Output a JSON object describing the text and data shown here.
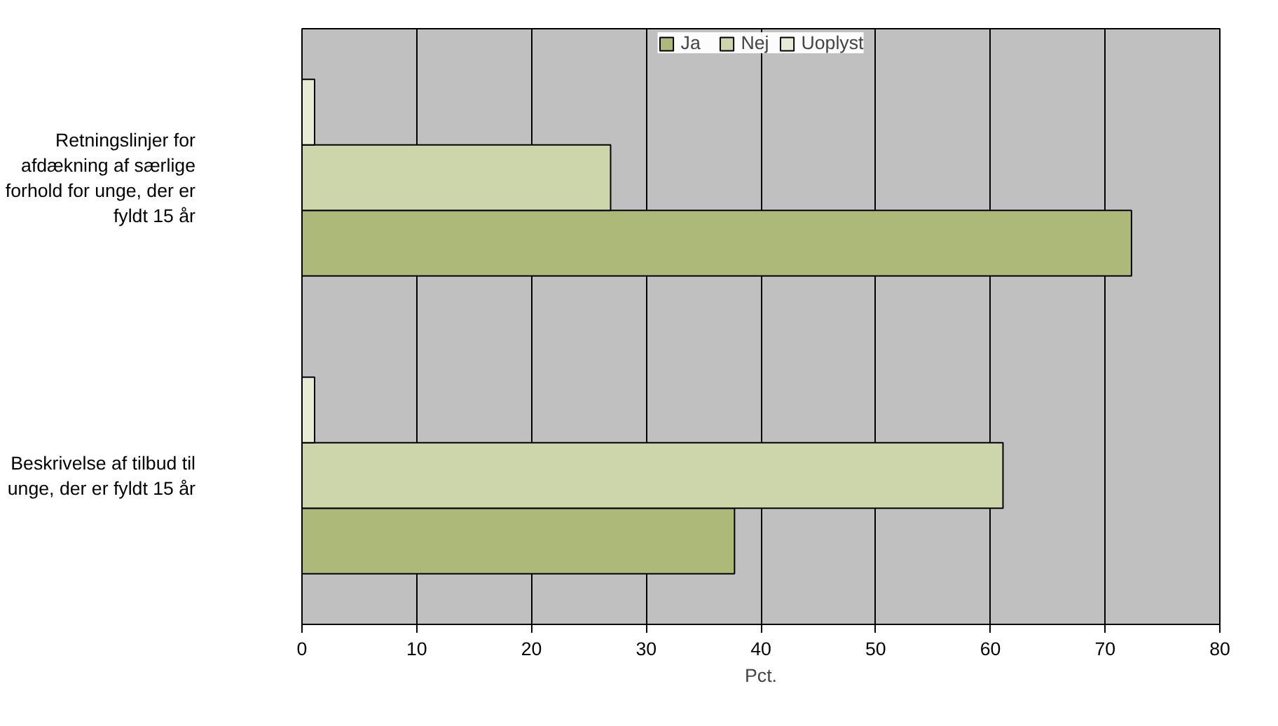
{
  "chart_data": {
    "type": "bar",
    "orientation": "horizontal",
    "xlabel": "Pct.",
    "categories": [
      "Retningslinjer for afdækning af særlige forhold for unge, der er fyldt 15 år",
      "Beskrivelse af tilbud til unge, der er fyldt 15 år"
    ],
    "series": [
      {
        "name": "Ja",
        "color": "#adb978",
        "values": [
          72.3,
          37.7
        ]
      },
      {
        "name": "Nej",
        "color": "#cdd5aa",
        "values": [
          26.9,
          61.1
        ]
      },
      {
        "name": "Uoplyst",
        "color": "#e8ecd5",
        "values": [
          1.1,
          1.1
        ]
      }
    ],
    "xlim": [
      0,
      80
    ],
    "xticks": [
      0,
      10,
      20,
      30,
      40,
      50,
      60,
      70,
      80
    ],
    "grid": "x",
    "legend": "top"
  }
}
